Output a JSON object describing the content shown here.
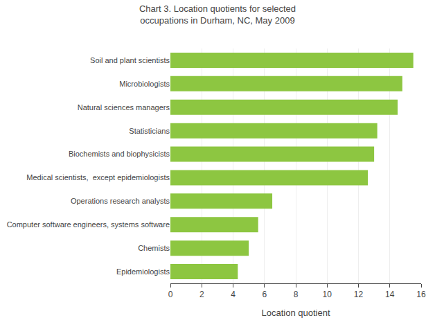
{
  "chart_data": {
    "type": "bar",
    "orientation": "horizontal",
    "title": "Chart 3. Location quotients for selected\noccupations in Durham, NC, May 2009",
    "categories": [
      "Epidemiologists",
      "Chemists",
      "Computer software engineers, systems software",
      "Operations research analysts",
      "Medical scientists,  except epidemiologists",
      "Biochemists and biophysicists",
      "Statisticians",
      "Natural sciences managers",
      "Microbiologists",
      "Soil and plant scientists"
    ],
    "values": [
      4.3,
      5.0,
      5.6,
      6.5,
      12.6,
      13.0,
      13.2,
      14.5,
      14.8,
      15.5
    ],
    "color": "#8DC641",
    "xlabel": "Location quotient",
    "xlim": [
      0,
      16
    ],
    "xticks": [
      0,
      2,
      4,
      6,
      8,
      10,
      12,
      14,
      16
    ],
    "grid": true
  }
}
